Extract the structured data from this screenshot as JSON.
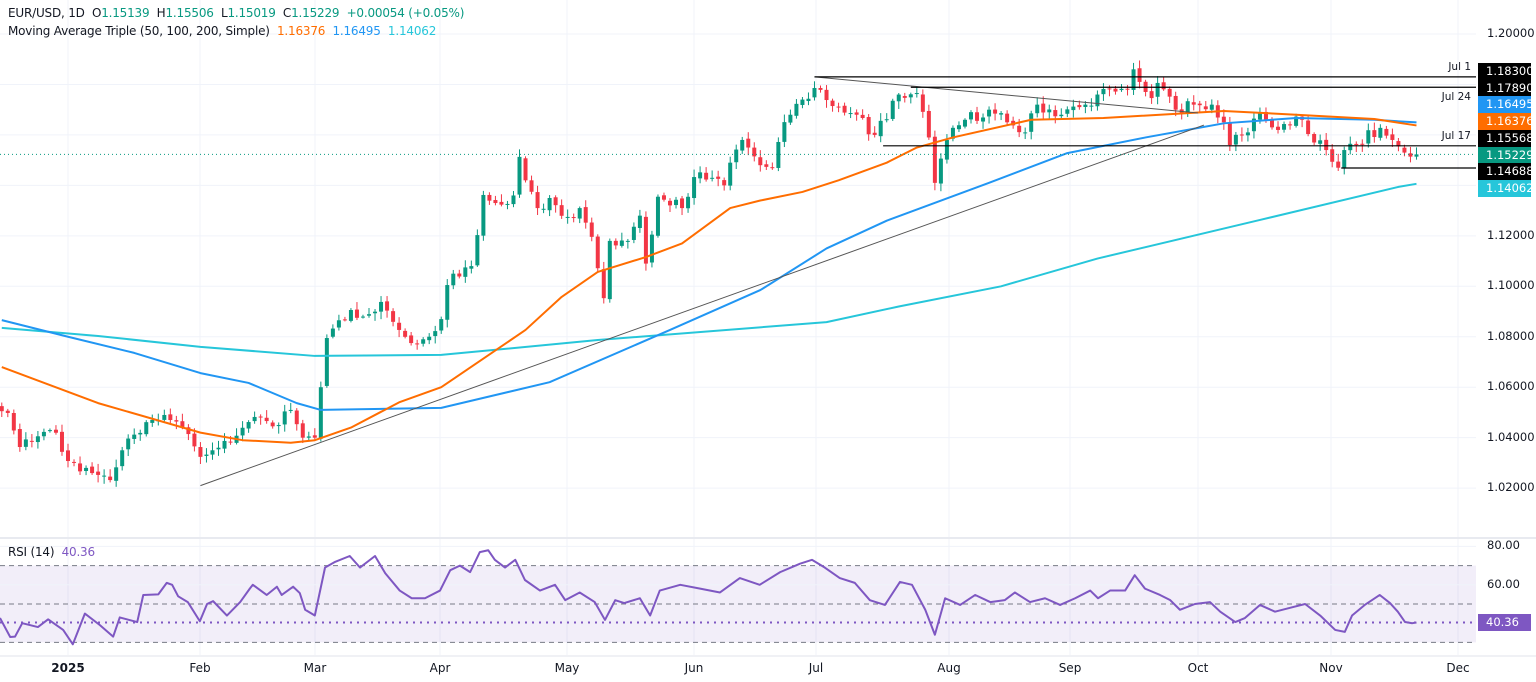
{
  "header": {
    "symbol": "EUR/USD, 1D",
    "o_label": "O",
    "open": "1.15139",
    "h_label": "H",
    "high": "1.15506",
    "l_label": "L",
    "low": "1.15019",
    "c_label": "C",
    "close": "1.15229",
    "change": "+0.00054 (+0.05%)"
  },
  "ma_legend": {
    "title": "Moving Average Triple (50, 100, 200, Simple)",
    "ma50": "1.16376",
    "ma100": "1.16495",
    "ma200": "1.14062"
  },
  "rsi_legend": {
    "title": "RSI (14)",
    "value": "40.36"
  },
  "price_axis": {
    "ticks": [
      {
        "text": "1.20000",
        "price": 1.2
      },
      {
        "text": "1.12000",
        "price": 1.12
      },
      {
        "text": "1.10000",
        "price": 1.1
      },
      {
        "text": "1.08000",
        "price": 1.08
      },
      {
        "text": "1.06000",
        "price": 1.06
      },
      {
        "text": "1.04000",
        "price": 1.04
      },
      {
        "text": "1.02000",
        "price": 1.02
      }
    ]
  },
  "price_labels": [
    {
      "text": "1.18300",
      "color": "#000000"
    },
    {
      "text": "1.17890",
      "color": "#000000"
    },
    {
      "text": "1.16495",
      "color": "#2196f3"
    },
    {
      "text": "1.16376",
      "color": "#ff6d00"
    },
    {
      "text": "1.15568",
      "color": "#000000"
    },
    {
      "text": "1.15229",
      "color": "#089981"
    },
    {
      "text": "1.14688",
      "color": "#000000"
    },
    {
      "text": "1.14062",
      "color": "#26c6da"
    }
  ],
  "level_notes": [
    {
      "text": "Jul 1",
      "price": 1.183
    },
    {
      "text": "Jul 24",
      "price": 1.1789
    },
    {
      "text": "Jul 17",
      "price": 1.15568
    }
  ],
  "rsi_axis": [
    {
      "text": "80.00",
      "value": 80
    },
    {
      "text": "60.00",
      "value": 60
    }
  ],
  "rsi_price_label": "40.36",
  "time_axis": [
    "2025",
    "Feb",
    "Mar",
    "Apr",
    "May",
    "Jun",
    "Jul",
    "Aug",
    "Sep",
    "Oct",
    "Nov",
    "Dec"
  ],
  "colors": {
    "up": "#089981",
    "down": "#f23645",
    "ma50": "#ff6d00",
    "ma100": "#2196f3",
    "ma200": "#26c6da",
    "rsi": "#7e57c2",
    "grid": "#f0f3fa"
  },
  "chart_data": {
    "type": "candlestick",
    "title": "EUR/USD, 1D",
    "ylim": [
      1.005,
      1.205
    ],
    "close_keypoints": [
      [
        -11,
        1.0505
      ],
      [
        -10,
        1.0498
      ],
      [
        -8,
        1.0363
      ],
      [
        -3,
        1.043
      ],
      [
        1,
        1.03
      ],
      [
        7,
        1.0232
      ],
      [
        9,
        1.035
      ],
      [
        12,
        1.0419
      ],
      [
        16,
        1.049
      ],
      [
        19,
        1.044
      ],
      [
        22,
        1.0324
      ],
      [
        24,
        1.035
      ],
      [
        30,
        1.0462
      ],
      [
        32,
        1.048
      ],
      [
        35,
        1.045
      ],
      [
        37,
        1.051
      ],
      [
        39,
        1.04
      ],
      [
        41,
        1.04
      ],
      [
        42,
        1.06
      ],
      [
        43,
        1.0795
      ],
      [
        47,
        1.0906
      ],
      [
        49,
        1.088
      ],
      [
        52,
        1.0938
      ],
      [
        55,
        1.0827
      ],
      [
        57,
        1.0775
      ],
      [
        59,
        1.079
      ],
      [
        62,
        1.087
      ],
      [
        63,
        1.1005
      ],
      [
        64,
        1.105
      ],
      [
        67,
        1.108
      ],
      [
        68,
        1.1203
      ],
      [
        69,
        1.1362
      ],
      [
        71,
        1.133
      ],
      [
        74,
        1.136
      ],
      [
        75,
        1.1513
      ],
      [
        76,
        1.142
      ],
      [
        78,
        1.131
      ],
      [
        80,
        1.135
      ],
      [
        83,
        1.1275
      ],
      [
        85,
        1.131
      ],
      [
        87,
        1.1196
      ],
      [
        89,
        1.0953
      ],
      [
        90,
        1.118
      ],
      [
        93,
        1.118
      ],
      [
        94,
        1.1236
      ],
      [
        95,
        1.128
      ],
      [
        96,
        1.109
      ],
      [
        98,
        1.1355
      ],
      [
        102,
        1.131
      ],
      [
        104,
        1.1433
      ],
      [
        107,
        1.143
      ],
      [
        109,
        1.14
      ],
      [
        110,
        1.149
      ],
      [
        112,
        1.158
      ],
      [
        113,
        1.155
      ],
      [
        115,
        1.148
      ],
      [
        117,
        1.147
      ],
      [
        118,
        1.1572
      ],
      [
        120,
        1.168
      ],
      [
        122,
        1.174
      ],
      [
        124,
        1.1786
      ],
      [
        128,
        1.171
      ],
      [
        131,
        1.168
      ],
      [
        134,
        1.16
      ],
      [
        138,
        1.176
      ],
      [
        141,
        1.1766
      ],
      [
        143,
        1.159
      ],
      [
        144,
        1.141
      ],
      [
        146,
        1.158
      ],
      [
        149,
        1.166
      ],
      [
        153,
        1.17
      ],
      [
        156,
        1.165
      ],
      [
        159,
        1.161
      ],
      [
        161,
        1.172
      ],
      [
        165,
        1.168
      ],
      [
        169,
        1.172
      ],
      [
        171,
        1.176
      ],
      [
        176,
        1.178
      ],
      [
        177,
        1.186
      ],
      [
        178,
        1.181
      ],
      [
        180,
        1.1746
      ],
      [
        181,
        1.1806
      ],
      [
        184,
        1.17
      ],
      [
        187,
        1.172
      ],
      [
        190,
        1.172
      ],
      [
        192,
        1.165
      ],
      [
        193,
        1.156
      ],
      [
        196,
        1.161
      ],
      [
        198,
        1.169
      ],
      [
        200,
        1.163
      ],
      [
        205,
        1.166
      ],
      [
        207,
        1.157
      ],
      [
        209,
        1.154
      ],
      [
        211,
        1.147
      ],
      [
        212,
        1.154
      ],
      [
        214,
        1.156
      ],
      [
        218,
        1.1628
      ],
      [
        220,
        1.158
      ],
      [
        222,
        1.153
      ],
      [
        223,
        1.1514
      ],
      [
        224,
        1.1523
      ]
    ],
    "last_bar": {
      "open": 1.15139,
      "high": 1.15506,
      "low": 1.15019,
      "close": 1.15229
    },
    "ma50": [
      [
        -11,
        1.068
      ],
      [
        5,
        1.0537
      ],
      [
        22,
        1.042
      ],
      [
        29,
        1.039
      ],
      [
        37,
        1.038
      ],
      [
        41,
        1.039
      ],
      [
        47,
        1.044
      ],
      [
        55,
        1.054
      ],
      [
        62,
        1.06
      ],
      [
        76,
        1.0827
      ],
      [
        82,
        1.0958
      ],
      [
        88,
        1.1057
      ],
      [
        96,
        1.1116
      ],
      [
        102,
        1.117
      ],
      [
        110,
        1.131
      ],
      [
        115,
        1.134
      ],
      [
        122,
        1.1374
      ],
      [
        128,
        1.142
      ],
      [
        136,
        1.149
      ],
      [
        141,
        1.155
      ],
      [
        147,
        1.159
      ],
      [
        160,
        1.166
      ],
      [
        172,
        1.1667
      ],
      [
        192,
        1.1695
      ],
      [
        204,
        1.168
      ],
      [
        217,
        1.1663
      ],
      [
        224,
        1.16376
      ]
    ],
    "ma100": [
      [
        -11,
        1.0866
      ],
      [
        0,
        1.08
      ],
      [
        11,
        1.0736
      ],
      [
        22,
        1.0656
      ],
      [
        30,
        1.0617
      ],
      [
        38,
        1.0537
      ],
      [
        42,
        1.051
      ],
      [
        62,
        1.0518
      ],
      [
        80,
        1.062
      ],
      [
        100,
        1.0827
      ],
      [
        115,
        1.0985
      ],
      [
        126,
        1.115
      ],
      [
        136,
        1.126
      ],
      [
        153,
        1.141
      ],
      [
        166,
        1.1528
      ],
      [
        179,
        1.159
      ],
      [
        192,
        1.1646
      ],
      [
        204,
        1.1667
      ],
      [
        217,
        1.166
      ],
      [
        224,
        1.16495
      ]
    ],
    "ma200": [
      [
        -11,
        1.0835
      ],
      [
        5,
        1.0803
      ],
      [
        22,
        1.076
      ],
      [
        41,
        1.0724
      ],
      [
        62,
        1.0728
      ],
      [
        88,
        1.0787
      ],
      [
        126,
        1.0858
      ],
      [
        138,
        1.092
      ],
      [
        155,
        1.1
      ],
      [
        171,
        1.111
      ],
      [
        198,
        1.1263
      ],
      [
        221,
        1.1394
      ],
      [
        224,
        1.14062
      ]
    ],
    "rsi": {
      "period": 14,
      "last": 40.36,
      "levels": [
        70,
        50,
        30
      ],
      "ylim": [
        20,
        80
      ],
      "values": [
        [
          -11.3,
          42.7
        ],
        [
          -9.6,
          32.8
        ],
        [
          -8.8,
          33
        ],
        [
          -7.6,
          40
        ],
        [
          -5,
          38
        ],
        [
          -3.3,
          42
        ],
        [
          -0.8,
          36.5
        ],
        [
          0.8,
          29
        ],
        [
          2.8,
          45
        ],
        [
          5.3,
          39
        ],
        [
          7.5,
          33
        ],
        [
          8.6,
          43
        ],
        [
          11.5,
          40.6
        ],
        [
          12.5,
          54.7
        ],
        [
          15,
          55
        ],
        [
          16.4,
          61
        ],
        [
          17.3,
          60
        ],
        [
          18.3,
          54
        ],
        [
          19.9,
          51
        ],
        [
          21.9,
          41
        ],
        [
          23.1,
          50
        ],
        [
          24.1,
          51.5
        ],
        [
          26.4,
          44
        ],
        [
          28.6,
          51
        ],
        [
          30.2,
          58
        ],
        [
          30.7,
          60
        ],
        [
          33,
          54.7
        ],
        [
          34.7,
          59
        ],
        [
          35.5,
          54.7
        ],
        [
          37.4,
          59
        ],
        [
          38.5,
          55.7
        ],
        [
          39.4,
          47
        ],
        [
          41,
          44
        ],
        [
          42.7,
          69
        ],
        [
          44.4,
          72
        ],
        [
          46.8,
          75
        ],
        [
          48.5,
          69
        ],
        [
          51,
          75
        ],
        [
          52.7,
          66
        ],
        [
          55.1,
          57
        ],
        [
          57.1,
          53
        ],
        [
          59.3,
          53
        ],
        [
          61.8,
          57
        ],
        [
          63.5,
          67.6
        ],
        [
          65.1,
          70
        ],
        [
          66.8,
          66.6
        ],
        [
          68.4,
          77
        ],
        [
          69.8,
          78
        ],
        [
          70.9,
          73
        ],
        [
          72.6,
          69
        ],
        [
          74.3,
          73
        ],
        [
          75.9,
          62.5
        ],
        [
          78.4,
          57
        ],
        [
          80.9,
          60
        ],
        [
          82.6,
          52
        ],
        [
          85,
          56
        ],
        [
          87.5,
          51
        ],
        [
          89.2,
          41.7
        ],
        [
          90.9,
          52
        ],
        [
          92.4,
          50.5
        ],
        [
          95,
          53
        ],
        [
          96.7,
          44
        ],
        [
          98.3,
          57
        ],
        [
          101.7,
          60
        ],
        [
          105,
          58
        ],
        [
          108.3,
          56
        ],
        [
          111.6,
          63.5
        ],
        [
          114.9,
          60
        ],
        [
          118.3,
          66.6
        ],
        [
          121.6,
          71
        ],
        [
          123.6,
          73
        ],
        [
          125.7,
          69
        ],
        [
          128.2,
          63.5
        ],
        [
          130.7,
          61
        ],
        [
          133.2,
          52
        ],
        [
          135.7,
          49.5
        ],
        [
          138.2,
          61.5
        ],
        [
          140.2,
          60
        ],
        [
          142.4,
          47
        ],
        [
          144,
          34
        ],
        [
          145.7,
          53
        ],
        [
          148.2,
          49.5
        ],
        [
          150.7,
          54.7
        ],
        [
          153.2,
          51
        ],
        [
          155.6,
          52
        ],
        [
          157.3,
          56
        ],
        [
          159.8,
          51
        ],
        [
          162.3,
          53
        ],
        [
          164.8,
          49.5
        ],
        [
          167.3,
          53
        ],
        [
          169.8,
          57
        ],
        [
          171.1,
          53
        ],
        [
          173.1,
          57
        ],
        [
          175.6,
          57
        ],
        [
          177.2,
          65
        ],
        [
          178.9,
          58
        ],
        [
          181.4,
          54.7
        ],
        [
          183.1,
          52
        ],
        [
          184.7,
          47
        ],
        [
          187.2,
          50
        ],
        [
          189.7,
          51
        ],
        [
          191.4,
          46
        ],
        [
          193.9,
          40.6
        ],
        [
          195.5,
          42.7
        ],
        [
          198,
          49.5
        ],
        [
          200.5,
          46
        ],
        [
          203,
          48
        ],
        [
          205.5,
          50
        ],
        [
          208,
          44
        ],
        [
          210.5,
          36.5
        ],
        [
          212.1,
          35.5
        ],
        [
          213.3,
          44
        ],
        [
          215.4,
          49.5
        ],
        [
          217.9,
          54.7
        ],
        [
          219.6,
          50.5
        ],
        [
          220.9,
          46
        ],
        [
          222.1,
          40.6
        ],
        [
          223.3,
          40
        ],
        [
          224,
          40.36
        ]
      ]
    },
    "trendlines": [
      {
        "name": "rising-support",
        "from": [
          22,
          1.021
        ],
        "to": [
          188.7,
          1.1639
        ]
      },
      {
        "name": "falling-resistance",
        "from": [
          124,
          1.183
        ],
        "to": [
          187.7,
          1.1687
        ]
      }
    ],
    "horizontal_levels": [
      {
        "price": 1.183,
        "from_bar": 124
      },
      {
        "price": 1.1789,
        "from_bar": 140
      },
      {
        "price": 1.15568,
        "from_bar": 135.4
      },
      {
        "price": 1.14688,
        "from_bar": 211.5
      }
    ],
    "current_price": 1.15229
  }
}
